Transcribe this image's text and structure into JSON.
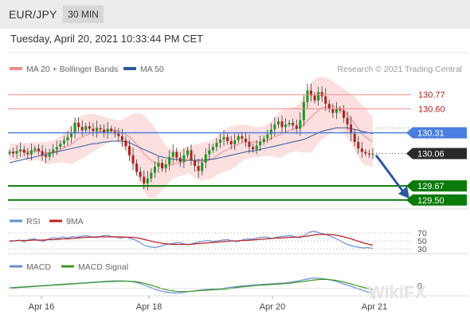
{
  "header": {
    "pair": "EUR/JPY",
    "timeframe": "30 MIN"
  },
  "timestamp": "Tuesday, April 20, 2021 10:33:44 PM CET",
  "legend": {
    "ma20": {
      "label": "MA 20 + Bollinger Bands",
      "color": "#f08a8a"
    },
    "ma50": {
      "label": "MA 50",
      "color": "#2c5aa0"
    },
    "research": "Research © 2021 Trading Central"
  },
  "watermark": "WikiFX",
  "colors": {
    "up": "#1a9a1a",
    "down": "#b02020",
    "resistance": "#f08a8a",
    "pivot": "#4a7ee0",
    "support": "#0a7a0a",
    "current": "#2a2a2a",
    "bollinger": "#fbd6d6",
    "rsi": "#6a8ed8",
    "rsi_ma": "#c02020",
    "macd": "#6a8ed8",
    "macd_signal": "#3a9a20",
    "arrow": "#2c5aa0"
  },
  "chart_data": [
    {
      "type": "candlestick",
      "x_labels": [
        "Apr 16",
        "Apr 18",
        "Apr 20",
        "Apr 21"
      ],
      "ylim": [
        129.45,
        130.95
      ],
      "levels": [
        {
          "value": "130.77",
          "kind": "resistance"
        },
        {
          "value": "130.60",
          "kind": "resistance"
        },
        {
          "value": "130.31",
          "kind": "pivot"
        },
        {
          "value": "130.06",
          "kind": "current"
        },
        {
          "value": "129.67",
          "kind": "support"
        },
        {
          "value": "129.50",
          "kind": "support"
        }
      ],
      "path_close": [
        130.08,
        130.06,
        130.09,
        130.11,
        130.07,
        130.05,
        130.1,
        130.12,
        130.09,
        130.04,
        130.02,
        130.07,
        130.11,
        130.14,
        130.18,
        130.22,
        130.26,
        130.3,
        130.43,
        130.38,
        130.34,
        130.39,
        130.36,
        130.33,
        130.37,
        130.35,
        130.31,
        130.36,
        130.33,
        130.3,
        130.27,
        130.22,
        130.15,
        130.04,
        129.94,
        129.84,
        129.78,
        129.7,
        129.76,
        129.83,
        129.9,
        129.95,
        129.88,
        129.93,
        130.02,
        130.08,
        130.01,
        129.96,
        130.04,
        130.1,
        129.98,
        129.91,
        129.85,
        129.95,
        130.05,
        130.1,
        130.14,
        130.19,
        130.23,
        130.26,
        130.21,
        130.17,
        130.22,
        130.27,
        130.24,
        130.2,
        130.14,
        130.11,
        130.16,
        130.2,
        130.24,
        130.29,
        130.35,
        130.41,
        130.45,
        130.38,
        130.41,
        130.43,
        130.4,
        130.36,
        130.46,
        130.68,
        130.82,
        130.76,
        130.7,
        130.8,
        130.75,
        130.66,
        130.6,
        130.55,
        130.6,
        130.58,
        130.49,
        130.41,
        130.3,
        130.2,
        130.12,
        130.08,
        130.06,
        130.05,
        130.06
      ],
      "bollinger": {
        "mid": [
          130.08,
          130.08,
          130.08,
          130.09,
          130.09,
          130.08,
          130.08,
          130.09,
          130.09,
          130.08,
          130.07,
          130.07,
          130.08,
          130.09,
          130.11,
          130.13,
          130.15,
          130.17,
          130.21,
          130.24,
          130.26,
          130.28,
          130.3,
          130.31,
          130.32,
          130.33,
          130.33,
          130.34,
          130.34,
          130.34,
          130.33,
          130.31,
          130.29,
          130.26,
          130.22,
          130.17,
          130.12,
          130.06,
          130.01,
          129.98,
          129.95,
          129.93,
          129.92,
          129.91,
          129.92,
          129.93,
          129.94,
          129.95,
          129.96,
          129.98,
          129.98,
          129.97,
          129.96,
          129.96,
          129.97,
          129.98,
          130.0,
          130.03,
          130.06,
          130.09,
          130.11,
          130.13,
          130.15,
          130.17,
          130.19,
          130.2,
          130.2,
          130.2,
          130.2,
          130.2,
          130.21,
          130.22,
          130.24,
          130.26,
          130.28,
          130.3,
          130.32,
          130.34,
          130.35,
          130.36,
          130.38,
          130.41,
          130.46,
          130.5,
          130.54,
          130.58,
          130.61,
          130.62,
          130.63,
          130.63,
          130.62,
          130.6,
          130.57,
          130.53,
          130.48,
          130.42,
          130.36,
          130.3,
          130.26,
          130.23,
          130.2
        ],
        "upper": [
          130.18,
          130.18,
          130.18,
          130.19,
          130.19,
          130.19,
          130.19,
          130.2,
          130.2,
          130.2,
          130.2,
          130.21,
          130.22,
          130.24,
          130.27,
          130.31,
          130.36,
          130.41,
          130.47,
          130.5,
          130.52,
          130.53,
          130.54,
          130.54,
          130.53,
          130.52,
          130.5,
          130.49,
          130.48,
          130.47,
          130.46,
          130.47,
          130.49,
          130.52,
          130.54,
          130.55,
          130.54,
          130.52,
          130.48,
          130.43,
          130.37,
          130.3,
          130.22,
          130.16,
          130.12,
          130.1,
          130.1,
          130.11,
          130.12,
          130.14,
          130.16,
          130.17,
          130.18,
          130.19,
          130.2,
          130.21,
          130.23,
          130.26,
          130.3,
          130.34,
          130.37,
          130.39,
          130.4,
          130.41,
          130.41,
          130.41,
          130.4,
          130.39,
          130.38,
          130.38,
          130.39,
          130.41,
          130.45,
          130.5,
          130.55,
          130.58,
          130.6,
          130.61,
          130.62,
          130.63,
          130.68,
          130.75,
          130.85,
          130.92,
          130.96,
          130.98,
          130.99,
          130.98,
          130.96,
          130.93,
          130.9,
          130.87,
          130.84,
          130.81,
          130.78,
          130.74,
          130.7,
          130.65,
          130.6,
          130.55,
          130.5
        ],
        "lower": [
          129.98,
          129.98,
          129.98,
          129.99,
          129.99,
          129.97,
          129.97,
          129.98,
          129.98,
          129.96,
          129.94,
          129.93,
          129.94,
          129.94,
          129.95,
          129.95,
          129.94,
          129.93,
          129.95,
          129.98,
          130.0,
          130.03,
          130.06,
          130.08,
          130.11,
          130.14,
          130.16,
          130.19,
          130.2,
          130.21,
          130.2,
          130.15,
          130.09,
          130.0,
          129.9,
          129.79,
          129.7,
          129.6,
          129.54,
          129.53,
          129.53,
          129.56,
          129.62,
          129.66,
          129.72,
          129.76,
          129.78,
          129.79,
          129.8,
          129.82,
          129.8,
          129.77,
          129.74,
          129.73,
          129.74,
          129.75,
          129.77,
          129.8,
          129.82,
          129.84,
          129.85,
          129.87,
          129.9,
          129.93,
          129.97,
          129.99,
          130.0,
          130.01,
          130.02,
          130.02,
          130.03,
          130.03,
          130.03,
          130.02,
          130.01,
          130.02,
          130.04,
          130.07,
          130.08,
          130.09,
          130.08,
          130.07,
          130.07,
          130.08,
          130.12,
          130.18,
          130.23,
          130.26,
          130.3,
          130.33,
          130.34,
          130.33,
          130.3,
          130.25,
          130.18,
          130.1,
          130.02,
          129.95,
          129.92,
          129.91,
          129.9
        ]
      },
      "ma50": [
        129.95,
        129.96,
        129.97,
        129.98,
        129.99,
        130.0,
        130.01,
        130.02,
        130.03,
        130.04,
        130.05,
        130.06,
        130.07,
        130.08,
        130.09,
        130.1,
        130.11,
        130.12,
        130.13,
        130.14,
        130.15,
        130.16,
        130.17,
        130.18,
        130.18,
        130.19,
        130.2,
        130.2,
        130.21,
        130.21,
        130.21,
        130.21,
        130.2,
        130.19,
        130.17,
        130.15,
        130.13,
        130.11,
        130.09,
        130.07,
        130.05,
        130.03,
        130.02,
        130.01,
        130.0,
        129.99,
        129.99,
        129.98,
        129.98,
        129.98,
        129.98,
        129.98,
        129.98,
        129.98,
        129.98,
        129.99,
        129.99,
        130.0,
        130.01,
        130.02,
        130.03,
        130.04,
        130.05,
        130.06,
        130.07,
        130.08,
        130.09,
        130.09,
        130.1,
        130.11,
        130.12,
        130.13,
        130.14,
        130.15,
        130.16,
        130.17,
        130.18,
        130.19,
        130.2,
        130.21,
        130.22,
        130.23,
        130.25,
        130.27,
        130.29,
        130.31,
        130.33,
        130.34,
        130.35,
        130.36,
        130.37,
        130.37,
        130.37,
        130.37,
        130.36,
        130.35,
        130.34,
        130.33,
        130.32,
        130.31,
        130.3
      ]
    },
    {
      "type": "line",
      "legend": [
        "RSI",
        "9MA"
      ],
      "ylim": [
        30,
        70
      ],
      "ticks": [
        "70",
        "50",
        "30"
      ],
      "series": [
        {
          "name": "RSI",
          "values": [
            48,
            50,
            52,
            47,
            53,
            55,
            51,
            49,
            54,
            58,
            56,
            60,
            57,
            61,
            59,
            62,
            63,
            60,
            58,
            62,
            64,
            61,
            59,
            57,
            60,
            56,
            52,
            45,
            38,
            35,
            33,
            36,
            40,
            42,
            44,
            46,
            42,
            40,
            44,
            47,
            49,
            51,
            48,
            50,
            52,
            53,
            50,
            48,
            52,
            55,
            54,
            57,
            59,
            60,
            56,
            58,
            61,
            62,
            63,
            60,
            58,
            65,
            72,
            74,
            70,
            67,
            63,
            58,
            52,
            45,
            40,
            36,
            34,
            32,
            33,
            31
          ]
        },
        {
          "name": "9MA",
          "values": [
            50,
            50,
            51,
            51,
            51,
            52,
            52,
            52,
            53,
            53,
            54,
            55,
            55,
            56,
            57,
            58,
            59,
            59,
            60,
            60,
            60,
            60,
            60,
            60,
            59,
            59,
            58,
            56,
            53,
            50,
            47,
            45,
            43,
            42,
            41,
            41,
            41,
            41,
            42,
            43,
            44,
            45,
            46,
            47,
            48,
            49,
            50,
            50,
            51,
            51,
            52,
            53,
            54,
            55,
            56,
            57,
            57,
            58,
            59,
            59,
            60,
            61,
            63,
            65,
            66,
            66,
            66,
            65,
            63,
            60,
            57,
            53,
            49,
            45,
            42,
            39
          ]
        }
      ]
    },
    {
      "type": "line",
      "legend": [
        "MACD",
        "MACD Signal"
      ],
      "ticks": [
        "0"
      ],
      "series": [
        {
          "name": "MACD",
          "values": [
            0.02,
            0.03,
            0.04,
            0.05,
            0.06,
            0.07,
            0.08,
            0.09,
            0.1,
            0.11,
            0.12,
            0.13,
            0.14,
            0.15,
            0.16,
            0.17,
            0.18,
            0.19,
            0.2,
            0.21,
            0.22,
            0.22,
            0.22,
            0.21,
            0.19,
            0.15,
            0.1,
            0.04,
            -0.02,
            -0.07,
            -0.1,
            -0.12,
            -0.13,
            -0.12,
            -0.1,
            -0.08,
            -0.06,
            -0.04,
            -0.03,
            -0.02,
            -0.01,
            0.0,
            0.02,
            0.04,
            0.06,
            0.08,
            0.09,
            0.1,
            0.11,
            0.12,
            0.13,
            0.14,
            0.15,
            0.16,
            0.18,
            0.2,
            0.23,
            0.26,
            0.29,
            0.3,
            0.29,
            0.27,
            0.24,
            0.2,
            0.15,
            0.1,
            0.05,
            0.0,
            -0.05,
            -0.1,
            -0.14
          ]
        },
        {
          "name": "MACD Signal",
          "values": [
            0.01,
            0.02,
            0.03,
            0.04,
            0.05,
            0.06,
            0.07,
            0.08,
            0.09,
            0.1,
            0.11,
            0.12,
            0.13,
            0.14,
            0.15,
            0.16,
            0.17,
            0.18,
            0.19,
            0.2,
            0.2,
            0.21,
            0.21,
            0.21,
            0.2,
            0.18,
            0.15,
            0.11,
            0.06,
            0.01,
            -0.03,
            -0.06,
            -0.08,
            -0.09,
            -0.09,
            -0.08,
            -0.07,
            -0.06,
            -0.05,
            -0.04,
            -0.03,
            -0.02,
            -0.01,
            0.01,
            0.03,
            0.05,
            0.06,
            0.08,
            0.09,
            0.1,
            0.11,
            0.12,
            0.13,
            0.14,
            0.15,
            0.17,
            0.19,
            0.21,
            0.23,
            0.25,
            0.26,
            0.26,
            0.25,
            0.23,
            0.2,
            0.16,
            0.12,
            0.08,
            0.04,
            0.0,
            -0.04
          ]
        }
      ]
    }
  ]
}
